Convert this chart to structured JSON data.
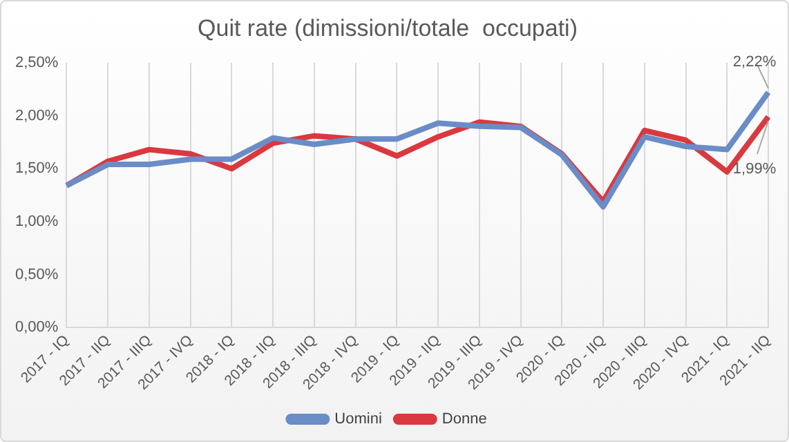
{
  "chart_data": {
    "type": "line",
    "title": "Quit rate (dimissioni/totale  occupati)",
    "categories": [
      "2017 - IQ",
      "2017 - IIQ",
      "2017 - IIIQ",
      "2017 - IVQ",
      "2018 - IQ",
      "2018 - IIQ",
      "2018 - IIIQ",
      "2018 - IVQ",
      "2019 - IQ",
      "2019 - IIQ",
      "2019 - IIIQ",
      "2019 - IVQ",
      "2020 - IQ",
      "2020 - IIQ",
      "2020 - IIIQ",
      "2020 - IVQ",
      "2021 - IQ",
      "2021 - IIQ"
    ],
    "series": [
      {
        "name": "Uomini",
        "color": "#6a8cc7",
        "values": [
          1.34,
          1.54,
          1.54,
          1.59,
          1.59,
          1.79,
          1.73,
          1.78,
          1.78,
          1.93,
          1.9,
          1.89,
          1.63,
          1.14,
          1.8,
          1.71,
          1.68,
          2.22
        ],
        "value_labels": [
          null,
          null,
          null,
          null,
          null,
          null,
          null,
          null,
          null,
          null,
          null,
          null,
          null,
          null,
          null,
          null,
          null,
          "2,22%"
        ]
      },
      {
        "name": "Donne",
        "color": "#d9393f",
        "values": [
          1.34,
          1.57,
          1.68,
          1.64,
          1.5,
          1.74,
          1.81,
          1.78,
          1.62,
          1.8,
          1.94,
          1.9,
          1.64,
          1.19,
          1.86,
          1.77,
          1.47,
          1.99
        ],
        "value_labels": [
          null,
          null,
          null,
          null,
          null,
          null,
          null,
          null,
          null,
          null,
          null,
          null,
          null,
          null,
          null,
          null,
          null,
          "1,99%"
        ]
      }
    ],
    "ylim": [
      0,
      2.5
    ],
    "yticks": [
      {
        "value": 0,
        "label": "0,00%"
      },
      {
        "value": 0.5,
        "label": "0,50%"
      },
      {
        "value": 1,
        "label": "1,00%"
      },
      {
        "value": 1.5,
        "label": "1,50%"
      },
      {
        "value": 2,
        "label": "2,00%"
      },
      {
        "value": 2.5,
        "label": "2,50%"
      }
    ],
    "grid": "x",
    "legend": "bottom",
    "marker": "none",
    "line_style": "solid"
  }
}
